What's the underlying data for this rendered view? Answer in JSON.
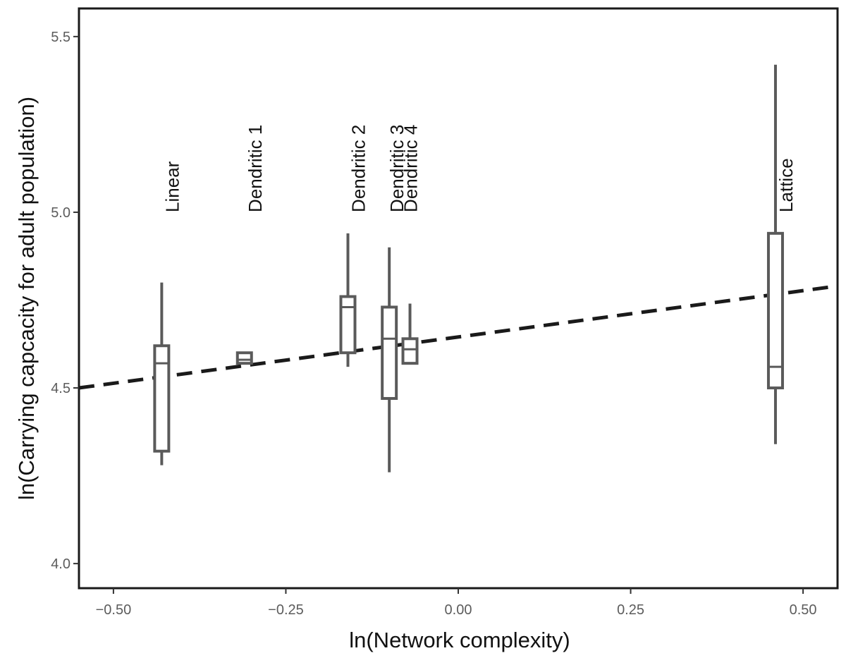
{
  "chart_data": {
    "type": "boxplot",
    "xlabel": "ln(Network complexity)",
    "ylabel": "ln(Carrying capcacity for adult population)",
    "xlim": [
      -0.55,
      0.55
    ],
    "ylim": [
      3.93,
      5.58
    ],
    "x_ticks": [
      {
        "value": -0.5,
        "label": "−0.50"
      },
      {
        "value": -0.25,
        "label": "−0.25"
      },
      {
        "value": 0.0,
        "label": "0.00"
      },
      {
        "value": 0.25,
        "label": "0.25"
      },
      {
        "value": 0.5,
        "label": "0.50"
      }
    ],
    "y_ticks": [
      {
        "value": 4.0,
        "label": "4.0"
      },
      {
        "value": 4.5,
        "label": "4.5"
      },
      {
        "value": 5.0,
        "label": "5.0"
      },
      {
        "value": 5.5,
        "label": "5.5"
      }
    ],
    "grid": false,
    "boxes": [
      {
        "label": "Linear",
        "x": -0.43,
        "min": 4.28,
        "q1": 4.32,
        "median": 4.57,
        "q3": 4.62,
        "max": 4.8
      },
      {
        "label": "Dendritic 1",
        "x": -0.31,
        "min": 4.57,
        "q1": 4.57,
        "median": 4.58,
        "q3": 4.6,
        "max": 4.6
      },
      {
        "label": "Dendritic 2",
        "x": -0.16,
        "min": 4.56,
        "q1": 4.6,
        "median": 4.73,
        "q3": 4.76,
        "max": 4.94
      },
      {
        "label": "Dendritic 3",
        "x": -0.1,
        "min": 4.26,
        "q1": 4.47,
        "median": 4.64,
        "q3": 4.73,
        "max": 4.9
      },
      {
        "label": "Dendritic 4",
        "x": -0.07,
        "min": 4.57,
        "q1": 4.57,
        "median": 4.61,
        "q3": 4.64,
        "max": 4.74
      },
      {
        "label": "Lattice",
        "x": 0.46,
        "min": 4.34,
        "q1": 4.5,
        "median": 4.56,
        "q3": 4.94,
        "max": 5.42
      }
    ],
    "trend_line": {
      "style": "dashed",
      "x": [
        -0.55,
        0.55
      ],
      "y": [
        4.5,
        4.79
      ]
    },
    "colors": {
      "box": "#5a5a5a",
      "trend": "#1a1a1a",
      "frame": "#1a1a1a",
      "tick_label": "#5c5c5c"
    }
  }
}
